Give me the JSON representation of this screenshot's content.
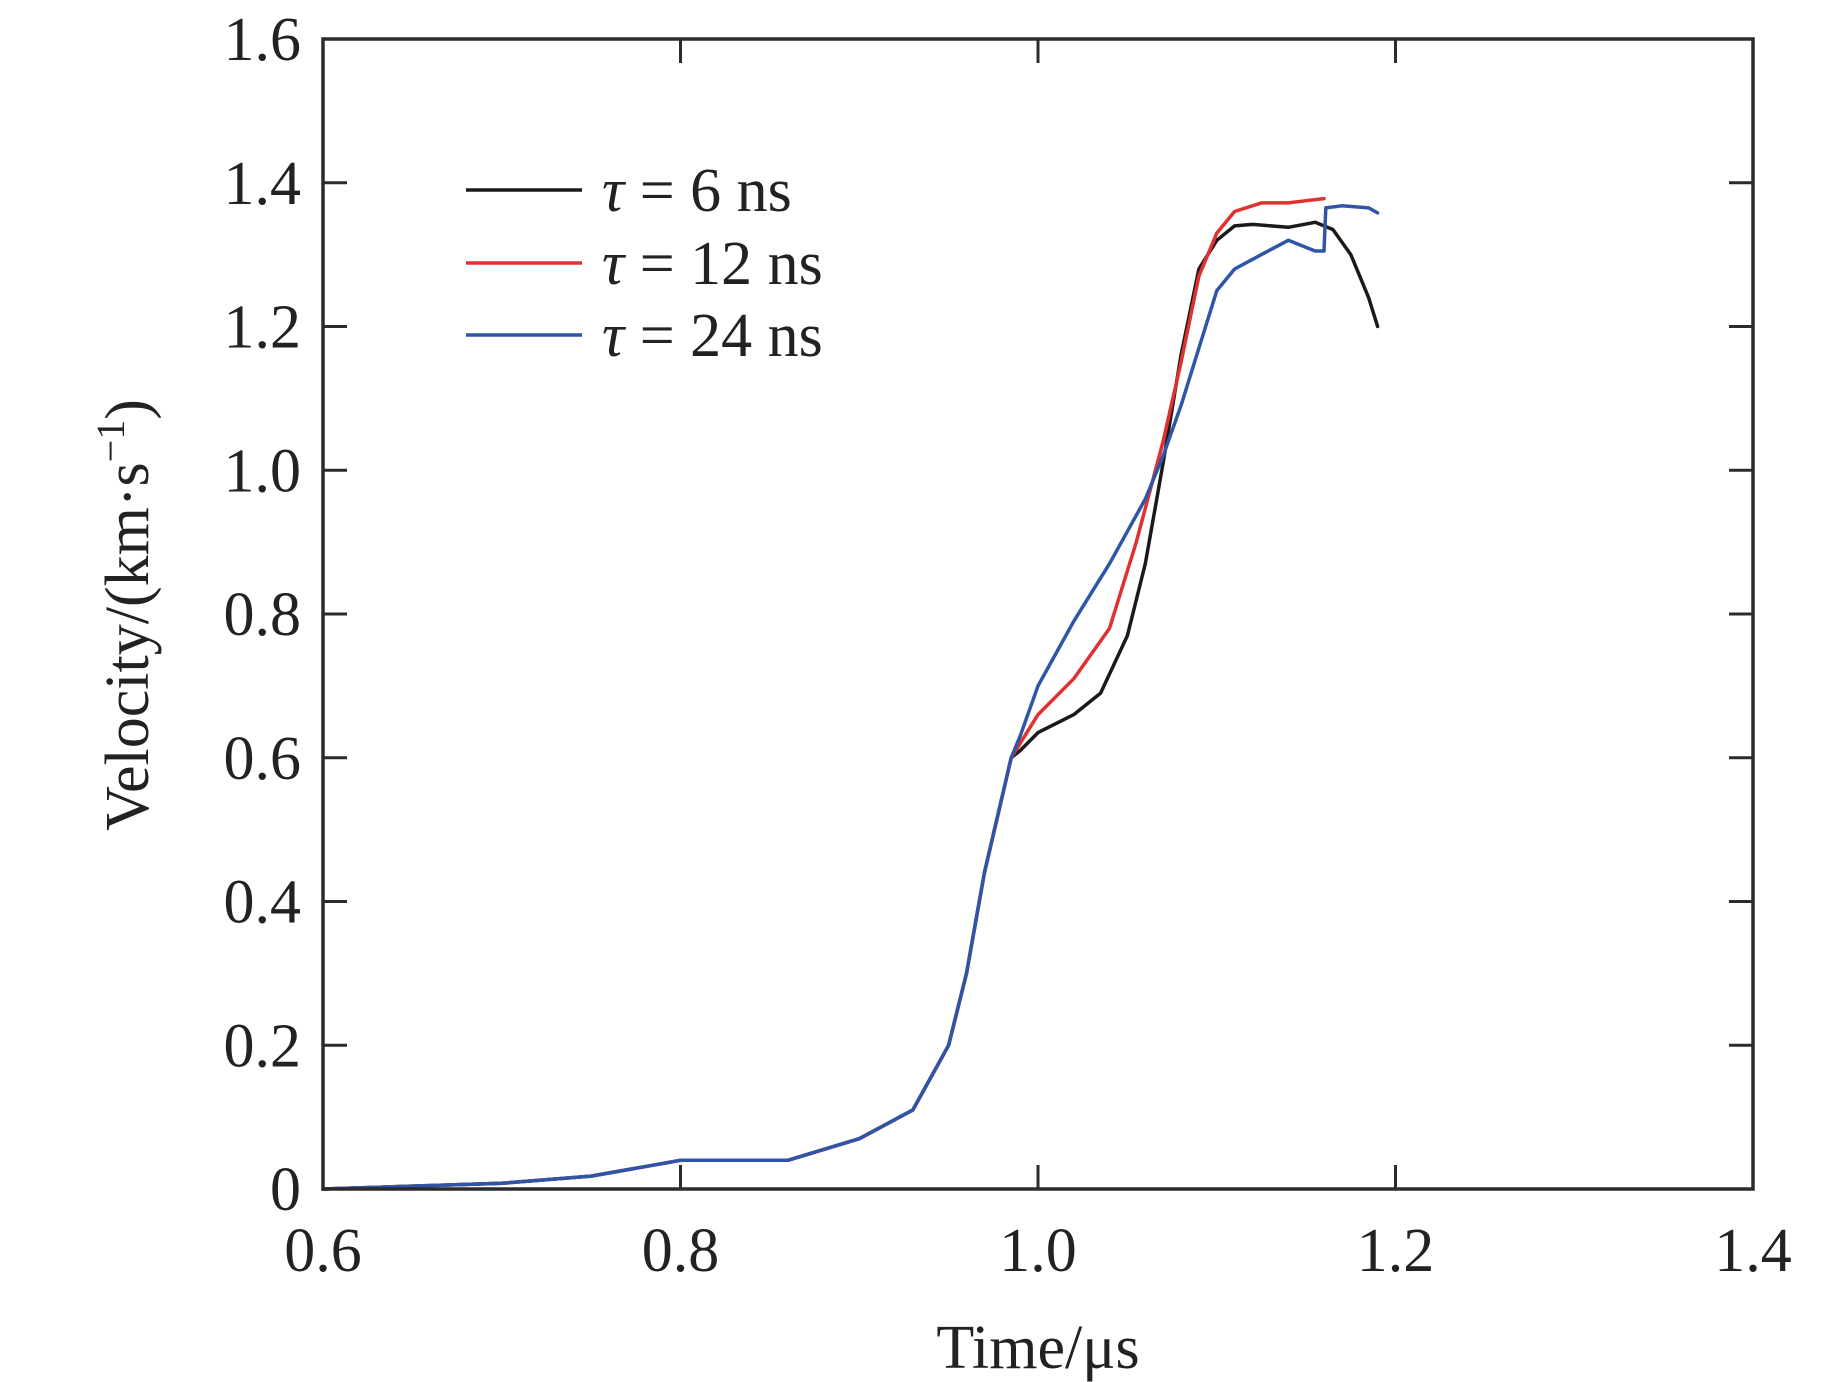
{
  "chart_data": {
    "type": "line",
    "title": "",
    "xlabel": "Time/μs",
    "ylabel_main": "Velocity/(km·s",
    "ylabel_sup": "−1",
    "ylabel_close": ")",
    "xlim": [
      0.6,
      1.4
    ],
    "ylim": [
      0,
      1.6
    ],
    "x_ticks": [
      0.6,
      0.8,
      1.0,
      1.2,
      1.4
    ],
    "x_tick_labels": [
      "0.6",
      "0.8",
      "1.0",
      "1.2",
      "1.4"
    ],
    "y_ticks": [
      0,
      0.2,
      0.4,
      0.6,
      0.8,
      1.0,
      1.2,
      1.4,
      1.6
    ],
    "y_tick_labels": [
      "0",
      "0.2",
      "0.4",
      "0.6",
      "0.8",
      "1.0",
      "1.2",
      "1.4",
      "1.6"
    ],
    "grid": false,
    "legend_position": "top-left",
    "series": [
      {
        "name": "τ = 6 ns",
        "symbol": "τ",
        "label_rest": " = 6 ns",
        "color": "#1a1a1a",
        "x": [
          0.6,
          0.7,
          0.75,
          0.8,
          0.86,
          0.9,
          0.93,
          0.95,
          0.96,
          0.97,
          0.985,
          0.99,
          1.0,
          1.02,
          1.035,
          1.05,
          1.06,
          1.07,
          1.08,
          1.09,
          1.1,
          1.11,
          1.12,
          1.14,
          1.155,
          1.165,
          1.175,
          1.185,
          1.19
        ],
        "y": [
          0.0,
          0.008,
          0.018,
          0.04,
          0.04,
          0.07,
          0.11,
          0.2,
          0.3,
          0.44,
          0.6,
          0.61,
          0.635,
          0.66,
          0.69,
          0.77,
          0.87,
          1.01,
          1.16,
          1.28,
          1.32,
          1.34,
          1.342,
          1.338,
          1.345,
          1.335,
          1.3,
          1.24,
          1.2
        ]
      },
      {
        "name": "τ = 12 ns",
        "symbol": "τ",
        "label_rest": " = 12 ns",
        "color": "#e03030",
        "x": [
          0.6,
          0.7,
          0.75,
          0.8,
          0.86,
          0.9,
          0.93,
          0.95,
          0.96,
          0.97,
          0.985,
          0.99,
          1.0,
          1.02,
          1.04,
          1.055,
          1.07,
          1.08,
          1.09,
          1.1,
          1.11,
          1.125,
          1.14,
          1.15,
          1.16
        ],
        "y": [
          0.0,
          0.008,
          0.018,
          0.04,
          0.04,
          0.07,
          0.11,
          0.2,
          0.3,
          0.44,
          0.6,
          0.62,
          0.66,
          0.71,
          0.78,
          0.9,
          1.04,
          1.15,
          1.27,
          1.33,
          1.36,
          1.372,
          1.372,
          1.375,
          1.378
        ]
      },
      {
        "name": "τ = 24 ns",
        "symbol": "τ",
        "label_rest": " = 24 ns",
        "color": "#2f55a8",
        "x": [
          0.6,
          0.7,
          0.75,
          0.8,
          0.86,
          0.9,
          0.93,
          0.95,
          0.96,
          0.97,
          0.985,
          0.99,
          1.0,
          1.02,
          1.04,
          1.06,
          1.07,
          1.08,
          1.09,
          1.1,
          1.11,
          1.125,
          1.14,
          1.155,
          1.16,
          1.161,
          1.17,
          1.185,
          1.19
        ],
        "y": [
          0.0,
          0.008,
          0.018,
          0.04,
          0.04,
          0.07,
          0.11,
          0.2,
          0.3,
          0.44,
          0.6,
          0.63,
          0.7,
          0.79,
          0.87,
          0.96,
          1.02,
          1.09,
          1.17,
          1.25,
          1.28,
          1.3,
          1.32,
          1.305,
          1.305,
          1.365,
          1.368,
          1.365,
          1.358
        ]
      }
    ]
  }
}
